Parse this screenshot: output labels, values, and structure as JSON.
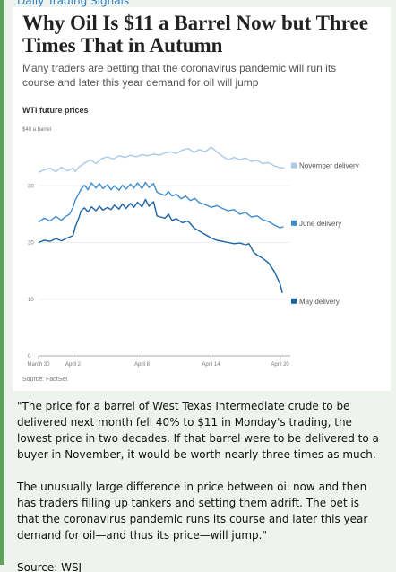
{
  "top_label": "Daily Trading Signals",
  "article": {
    "headline": "Why Oil Is $11 a Barrel Now but Three Times That in Autumn",
    "dek": "Many traders are betting that the coronavirus pandemic will run its course and later this year demand for oil will jump"
  },
  "chart_data": {
    "type": "line",
    "title": "WTI future prices",
    "ylabel": "$40 a barrel",
    "ylim": [
      0,
      40
    ],
    "yticks": [
      0,
      10,
      20,
      30
    ],
    "xlim": [
      0,
      21.5
    ],
    "xticks": [
      {
        "label": "March 30",
        "x": 0
      },
      {
        "label": "April 2",
        "x": 3
      },
      {
        "label": "April 8",
        "x": 9
      },
      {
        "label": "April 14",
        "x": 15
      },
      {
        "label": "April 20",
        "x": 21
      }
    ],
    "grid": true,
    "legend_position": "right",
    "series": [
      {
        "name": "November delivery",
        "color": "#aac9e8",
        "x": [
          0,
          0.5,
          1,
          1.5,
          2,
          2.5,
          3,
          3.2,
          3.5,
          4,
          4.5,
          5,
          5.5,
          6,
          6.5,
          7,
          7.5,
          8,
          8.5,
          9,
          9.5,
          10,
          10.5,
          11,
          11.5,
          12,
          12.5,
          13,
          13.5,
          14,
          14.5,
          15,
          15.5,
          16,
          16.5,
          17,
          17.5,
          18,
          18.5,
          19,
          19.5,
          20,
          20.5,
          21,
          21.4
        ],
        "values": [
          32.4,
          32.8,
          33.1,
          32.5,
          33.3,
          32.6,
          33.1,
          32.5,
          33.3,
          34.0,
          34.6,
          33.9,
          34.8,
          35.1,
          34.7,
          35.3,
          35.0,
          35.4,
          35.1,
          35.5,
          35.3,
          35.6,
          35.4,
          35.8,
          36.0,
          35.7,
          36.3,
          36.6,
          35.9,
          36.4,
          36.0,
          36.8,
          36.0,
          35.2,
          34.6,
          35.0,
          34.6,
          34.9,
          34.3,
          34.5,
          33.9,
          34.1,
          33.5,
          33.2,
          33.1
        ]
      },
      {
        "name": "June delivery",
        "color": "#3e8ccf",
        "x": [
          0,
          0.5,
          1,
          1.5,
          2,
          2.3,
          2.7,
          3,
          3.2,
          3.5,
          3.7,
          4,
          4.3,
          4.6,
          5,
          5.3,
          5.6,
          6,
          6.3,
          6.6,
          7,
          7.3,
          7.6,
          8,
          8.3,
          8.6,
          9,
          9.3,
          9.6,
          10,
          10.3,
          10.6,
          11,
          11.3,
          11.6,
          12,
          12.4,
          12.8,
          13.2,
          13.6,
          14,
          14.5,
          15,
          15.5,
          16,
          16.5,
          17,
          17.5,
          18,
          18.5,
          19,
          19.5,
          20,
          20.5,
          21,
          21.3
        ],
        "values": [
          23.6,
          24.3,
          23.8,
          24.6,
          23.9,
          24.5,
          25.0,
          26.2,
          27.5,
          28.6,
          29.4,
          30.1,
          29.3,
          30.5,
          29.6,
          30.4,
          29.5,
          30.2,
          29.3,
          30.0,
          29.2,
          30.1,
          29.4,
          30.3,
          29.6,
          30.5,
          29.5,
          30.6,
          29.7,
          30.4,
          28.9,
          28.6,
          28.3,
          29.0,
          28.2,
          28.5,
          27.7,
          28.2,
          27.4,
          27.8,
          27.0,
          26.7,
          26.2,
          26.5,
          26.0,
          25.6,
          25.8,
          25.0,
          25.3,
          24.5,
          24.7,
          24.0,
          23.7,
          23.1,
          22.6,
          22.8
        ]
      },
      {
        "name": "May delivery",
        "color": "#1b63a8",
        "x": [
          0,
          0.5,
          1,
          1.5,
          2,
          2.5,
          3,
          3.2,
          3.5,
          3.7,
          4,
          4.3,
          4.6,
          5,
          5.3,
          5.6,
          6,
          6.3,
          6.6,
          7,
          7.3,
          7.6,
          8,
          8.3,
          8.6,
          9,
          9.3,
          9.6,
          10,
          10.3,
          10.6,
          11,
          11.3,
          11.6,
          12,
          12.5,
          13,
          13.5,
          14,
          14.5,
          15,
          15.5,
          16,
          16.5,
          17,
          17.5,
          18,
          18.3,
          18.7,
          19,
          19.5,
          20,
          20.5,
          21,
          21.2
        ],
        "values": [
          20.0,
          20.4,
          20.2,
          20.7,
          20.3,
          20.8,
          21.2,
          22.8,
          24.3,
          25.6,
          26.1,
          25.4,
          26.3,
          25.6,
          26.4,
          25.7,
          26.2,
          25.8,
          26.6,
          25.9,
          26.8,
          26.0,
          26.9,
          26.2,
          27.1,
          26.3,
          27.6,
          26.4,
          27.2,
          24.7,
          24.5,
          24.3,
          25.0,
          23.9,
          24.2,
          23.5,
          23.8,
          22.6,
          22.0,
          21.4,
          20.8,
          20.4,
          20.2,
          20.0,
          19.8,
          19.9,
          19.6,
          19.8,
          18.3,
          17.8,
          17.2,
          16.4,
          14.9,
          12.7,
          11.1
        ]
      }
    ],
    "source": "Source: FactSet"
  },
  "body": {
    "paragraphs": [
      "\"The price for a barrel of West Texas Intermediate crude to be delivered next month fell 40% to $11 in Monday's trading, the lowest price in two decades. If that barrel were to be delivered to a buyer in November, it would be worth nearly three times as much.",
      "The unusually large difference in price between oil now and then has traders filling up tankers and setting them adrift. The bet is that the coronavirus pandemic runs its course and later this year demand for oil—and thus its price—will jump.\"",
      "Source: WSJ"
    ]
  }
}
